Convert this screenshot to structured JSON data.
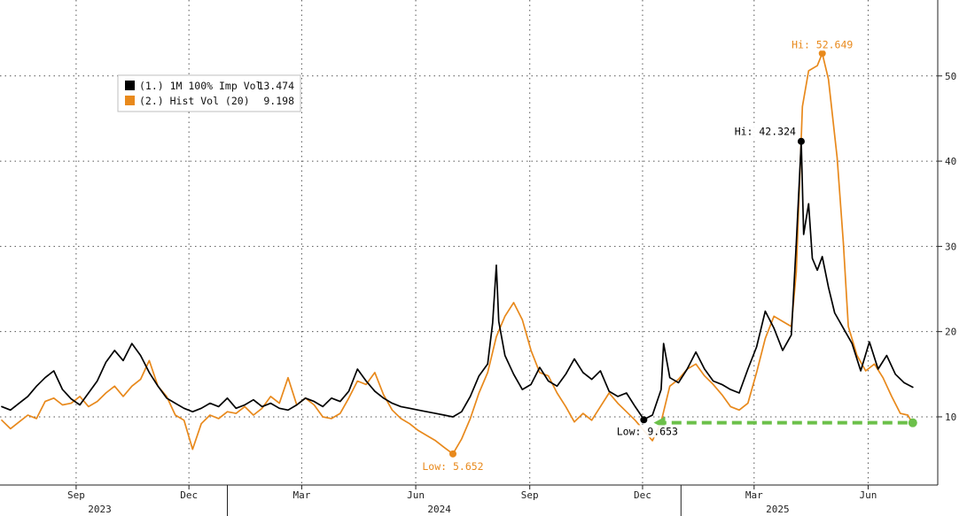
{
  "chart_data": {
    "type": "line",
    "title": "",
    "xlabel": "",
    "ylabel": "",
    "x_range": [
      "2023-07-03",
      "2025-07-10"
    ],
    "ylim": [
      2,
      56
    ],
    "y_ticks": [
      10,
      20,
      30,
      40,
      50
    ],
    "grid": true,
    "legend_position": "top-left",
    "x_month_ticks": [
      {
        "label": "Sep",
        "date": "2023-09-01"
      },
      {
        "label": "Dec",
        "date": "2023-12-01"
      },
      {
        "label": "Mar",
        "date": "2024-03-01"
      },
      {
        "label": "Jun",
        "date": "2024-06-01"
      },
      {
        "label": "Sep",
        "date": "2024-09-01"
      },
      {
        "label": "Dec",
        "date": "2024-12-01"
      },
      {
        "label": "Mar",
        "date": "2025-03-01"
      },
      {
        "label": "Jun",
        "date": "2025-06-01"
      }
    ],
    "x_year_labels": [
      {
        "label": "2023",
        "date": "2023-09-20"
      },
      {
        "label": "2024",
        "date": "2024-06-20"
      },
      {
        "label": "2025",
        "date": "2025-03-20"
      }
    ],
    "series": [
      {
        "name": "(1.) 1M 100% Imp Vol",
        "last_value": "13.474",
        "color": "#000000",
        "points": [
          [
            "2023-07-03",
            11.2
          ],
          [
            "2023-07-10",
            10.8
          ],
          [
            "2023-07-17",
            11.6
          ],
          [
            "2023-07-24",
            12.4
          ],
          [
            "2023-07-31",
            13.6
          ],
          [
            "2023-08-07",
            14.6
          ],
          [
            "2023-08-14",
            15.4
          ],
          [
            "2023-08-21",
            13.2
          ],
          [
            "2023-08-28",
            12.1
          ],
          [
            "2023-09-04",
            11.4
          ],
          [
            "2023-09-11",
            12.8
          ],
          [
            "2023-09-18",
            14.2
          ],
          [
            "2023-09-25",
            16.4
          ],
          [
            "2023-10-02",
            17.8
          ],
          [
            "2023-10-09",
            16.6
          ],
          [
            "2023-10-16",
            18.6
          ],
          [
            "2023-10-23",
            17.2
          ],
          [
            "2023-10-30",
            15.2
          ],
          [
            "2023-11-06",
            13.6
          ],
          [
            "2023-11-13",
            12.2
          ],
          [
            "2023-11-20",
            11.6
          ],
          [
            "2023-11-27",
            11.0
          ],
          [
            "2023-12-04",
            10.6
          ],
          [
            "2023-12-11",
            11.0
          ],
          [
            "2023-12-18",
            11.6
          ],
          [
            "2023-12-25",
            11.2
          ],
          [
            "2024-01-01",
            12.2
          ],
          [
            "2024-01-08",
            11.0
          ],
          [
            "2024-01-15",
            11.4
          ],
          [
            "2024-01-22",
            12.0
          ],
          [
            "2024-01-29",
            11.2
          ],
          [
            "2024-02-05",
            11.6
          ],
          [
            "2024-02-12",
            11.0
          ],
          [
            "2024-02-19",
            10.8
          ],
          [
            "2024-02-26",
            11.4
          ],
          [
            "2024-03-04",
            12.2
          ],
          [
            "2024-03-11",
            11.8
          ],
          [
            "2024-03-18",
            11.2
          ],
          [
            "2024-03-25",
            12.2
          ],
          [
            "2024-04-01",
            11.8
          ],
          [
            "2024-04-08",
            13.0
          ],
          [
            "2024-04-15",
            15.6
          ],
          [
            "2024-04-22",
            14.2
          ],
          [
            "2024-04-29",
            13.0
          ],
          [
            "2024-05-06",
            12.2
          ],
          [
            "2024-05-13",
            11.6
          ],
          [
            "2024-05-20",
            11.2
          ],
          [
            "2024-05-27",
            11.0
          ],
          [
            "2024-06-03",
            10.8
          ],
          [
            "2024-06-10",
            10.6
          ],
          [
            "2024-06-17",
            10.4
          ],
          [
            "2024-06-24",
            10.2
          ],
          [
            "2024-07-01",
            10.0
          ],
          [
            "2024-07-08",
            10.6
          ],
          [
            "2024-07-15",
            12.4
          ],
          [
            "2024-07-22",
            14.8
          ],
          [
            "2024-07-29",
            16.2
          ],
          [
            "2024-08-02",
            21.0
          ],
          [
            "2024-08-05",
            27.8
          ],
          [
            "2024-08-07",
            21.2
          ],
          [
            "2024-08-12",
            17.2
          ],
          [
            "2024-08-19",
            15.0
          ],
          [
            "2024-08-26",
            13.2
          ],
          [
            "2024-09-02",
            13.8
          ],
          [
            "2024-09-09",
            15.8
          ],
          [
            "2024-09-16",
            14.2
          ],
          [
            "2024-09-23",
            13.6
          ],
          [
            "2024-09-30",
            15.0
          ],
          [
            "2024-10-07",
            16.8
          ],
          [
            "2024-10-14",
            15.2
          ],
          [
            "2024-10-21",
            14.4
          ],
          [
            "2024-10-28",
            15.4
          ],
          [
            "2024-11-04",
            13.0
          ],
          [
            "2024-11-11",
            12.4
          ],
          [
            "2024-11-18",
            12.8
          ],
          [
            "2024-11-25",
            11.2
          ],
          [
            "2024-12-02",
            9.7
          ],
          [
            "2024-12-09",
            10.2
          ],
          [
            "2024-12-16",
            13.2
          ],
          [
            "2024-12-18",
            18.6
          ],
          [
            "2024-12-23",
            14.6
          ],
          [
            "2024-12-30",
            14.0
          ],
          [
            "2025-01-06",
            15.6
          ],
          [
            "2025-01-13",
            17.6
          ],
          [
            "2025-01-20",
            15.6
          ],
          [
            "2025-01-27",
            14.2
          ],
          [
            "2025-02-03",
            13.8
          ],
          [
            "2025-02-10",
            13.2
          ],
          [
            "2025-02-17",
            12.8
          ],
          [
            "2025-02-24",
            15.6
          ],
          [
            "2025-03-03",
            18.2
          ],
          [
            "2025-03-10",
            22.4
          ],
          [
            "2025-03-17",
            20.4
          ],
          [
            "2025-03-24",
            17.8
          ],
          [
            "2025-03-31",
            19.6
          ],
          [
            "2025-04-04",
            30.4
          ],
          [
            "2025-04-08",
            42.3
          ],
          [
            "2025-04-10",
            31.4
          ],
          [
            "2025-04-14",
            35.0
          ],
          [
            "2025-04-17",
            28.6
          ],
          [
            "2025-04-21",
            27.2
          ],
          [
            "2025-04-25",
            28.8
          ],
          [
            "2025-04-30",
            25.2
          ],
          [
            "2025-05-05",
            22.2
          ],
          [
            "2025-05-12",
            20.4
          ],
          [
            "2025-05-19",
            18.6
          ],
          [
            "2025-05-26",
            15.4
          ],
          [
            "2025-06-02",
            18.8
          ],
          [
            "2025-06-09",
            15.6
          ],
          [
            "2025-06-16",
            17.2
          ],
          [
            "2025-06-23",
            15.0
          ],
          [
            "2025-06-30",
            14.0
          ],
          [
            "2025-07-07",
            13.474
          ]
        ]
      },
      {
        "name": "(2.) Hist Vol (20)",
        "last_value": "9.198",
        "color": "#e8891c",
        "points": [
          [
            "2023-07-03",
            9.6
          ],
          [
            "2023-07-10",
            8.6
          ],
          [
            "2023-07-17",
            9.4
          ],
          [
            "2023-07-24",
            10.2
          ],
          [
            "2023-07-31",
            9.8
          ],
          [
            "2023-08-07",
            11.8
          ],
          [
            "2023-08-14",
            12.2
          ],
          [
            "2023-08-21",
            11.4
          ],
          [
            "2023-08-28",
            11.6
          ],
          [
            "2023-09-04",
            12.4
          ],
          [
            "2023-09-11",
            11.2
          ],
          [
            "2023-09-18",
            11.8
          ],
          [
            "2023-09-25",
            12.8
          ],
          [
            "2023-10-02",
            13.6
          ],
          [
            "2023-10-09",
            12.4
          ],
          [
            "2023-10-16",
            13.6
          ],
          [
            "2023-10-23",
            14.4
          ],
          [
            "2023-10-30",
            16.6
          ],
          [
            "2023-11-06",
            13.6
          ],
          [
            "2023-11-13",
            12.4
          ],
          [
            "2023-11-20",
            10.2
          ],
          [
            "2023-11-27",
            9.6
          ],
          [
            "2023-12-04",
            6.2
          ],
          [
            "2023-12-11",
            9.2
          ],
          [
            "2023-12-18",
            10.2
          ],
          [
            "2023-12-25",
            9.8
          ],
          [
            "2024-01-01",
            10.6
          ],
          [
            "2024-01-08",
            10.4
          ],
          [
            "2024-01-15",
            11.2
          ],
          [
            "2024-01-22",
            10.2
          ],
          [
            "2024-01-29",
            11.0
          ],
          [
            "2024-02-05",
            12.4
          ],
          [
            "2024-02-12",
            11.6
          ],
          [
            "2024-02-19",
            14.6
          ],
          [
            "2024-02-26",
            11.4
          ],
          [
            "2024-03-04",
            12.2
          ],
          [
            "2024-03-11",
            11.4
          ],
          [
            "2024-03-18",
            10.0
          ],
          [
            "2024-03-25",
            9.8
          ],
          [
            "2024-04-01",
            10.4
          ],
          [
            "2024-04-08",
            12.2
          ],
          [
            "2024-04-15",
            14.2
          ],
          [
            "2024-04-22",
            13.8
          ],
          [
            "2024-04-29",
            15.2
          ],
          [
            "2024-05-06",
            12.6
          ],
          [
            "2024-05-13",
            10.8
          ],
          [
            "2024-05-20",
            9.8
          ],
          [
            "2024-05-27",
            9.2
          ],
          [
            "2024-06-03",
            8.4
          ],
          [
            "2024-06-10",
            7.8
          ],
          [
            "2024-06-17",
            7.2
          ],
          [
            "2024-06-24",
            6.4
          ],
          [
            "2024-07-01",
            5.652
          ],
          [
            "2024-07-08",
            7.4
          ],
          [
            "2024-07-15",
            9.8
          ],
          [
            "2024-07-22",
            12.8
          ],
          [
            "2024-07-29",
            15.2
          ],
          [
            "2024-08-05",
            19.4
          ],
          [
            "2024-08-12",
            21.8
          ],
          [
            "2024-08-19",
            23.4
          ],
          [
            "2024-08-26",
            21.4
          ],
          [
            "2024-09-02",
            17.8
          ],
          [
            "2024-09-09",
            15.2
          ],
          [
            "2024-09-16",
            14.8
          ],
          [
            "2024-09-23",
            12.8
          ],
          [
            "2024-09-30",
            11.2
          ],
          [
            "2024-10-07",
            9.4
          ],
          [
            "2024-10-14",
            10.4
          ],
          [
            "2024-10-21",
            9.6
          ],
          [
            "2024-10-28",
            11.2
          ],
          [
            "2024-11-04",
            12.8
          ],
          [
            "2024-11-11",
            11.6
          ],
          [
            "2024-11-18",
            10.6
          ],
          [
            "2024-11-25",
            9.6
          ],
          [
            "2024-12-02",
            8.4
          ],
          [
            "2024-12-09",
            7.2
          ],
          [
            "2024-12-16",
            9.4
          ],
          [
            "2024-12-23",
            13.6
          ],
          [
            "2024-12-30",
            14.4
          ],
          [
            "2025-01-06",
            15.6
          ],
          [
            "2025-01-13",
            16.2
          ],
          [
            "2025-01-20",
            14.8
          ],
          [
            "2025-01-27",
            13.8
          ],
          [
            "2025-02-03",
            12.6
          ],
          [
            "2025-02-10",
            11.2
          ],
          [
            "2025-02-17",
            10.8
          ],
          [
            "2025-02-24",
            11.6
          ],
          [
            "2025-03-03",
            15.2
          ],
          [
            "2025-03-10",
            19.2
          ],
          [
            "2025-03-17",
            21.8
          ],
          [
            "2025-03-24",
            21.2
          ],
          [
            "2025-03-31",
            20.6
          ],
          [
            "2025-04-04",
            27.0
          ],
          [
            "2025-04-09",
            46.4
          ],
          [
            "2025-04-14",
            50.6
          ],
          [
            "2025-04-21",
            51.2
          ],
          [
            "2025-04-25",
            52.649
          ],
          [
            "2025-04-30",
            49.6
          ],
          [
            "2025-05-07",
            40.4
          ],
          [
            "2025-05-12",
            30.4
          ],
          [
            "2025-05-16",
            20.6
          ],
          [
            "2025-05-23",
            17.2
          ],
          [
            "2025-05-30",
            15.4
          ],
          [
            "2025-06-06",
            16.2
          ],
          [
            "2025-06-13",
            14.6
          ],
          [
            "2025-06-20",
            12.4
          ],
          [
            "2025-06-27",
            10.4
          ],
          [
            "2025-07-03",
            10.2
          ],
          [
            "2025-07-07",
            9.198
          ]
        ]
      }
    ],
    "annotations": [
      {
        "id": "imp-hi",
        "label": "Hi: 42.324",
        "series": 0,
        "date": "2025-04-08",
        "value": 42.324,
        "color": "#000000"
      },
      {
        "id": "hist-hi",
        "label": "Hi: 52.649",
        "series": 1,
        "date": "2025-04-25",
        "value": 52.649,
        "color": "#e8891c"
      },
      {
        "id": "hist-low",
        "label": "Low: 5.652",
        "series": 1,
        "date": "2024-07-01",
        "value": 5.652,
        "color": "#e8891c"
      },
      {
        "id": "imp-low",
        "label": "Low: 9.653",
        "series": 0,
        "date": "2024-12-02",
        "value": 9.653,
        "color": "#000000"
      }
    ],
    "arrow": {
      "color": "#6cc04a",
      "from": {
        "date": "2025-07-07",
        "value": 9.198
      },
      "to": {
        "date": "2024-12-10",
        "value": 9.198
      }
    }
  }
}
